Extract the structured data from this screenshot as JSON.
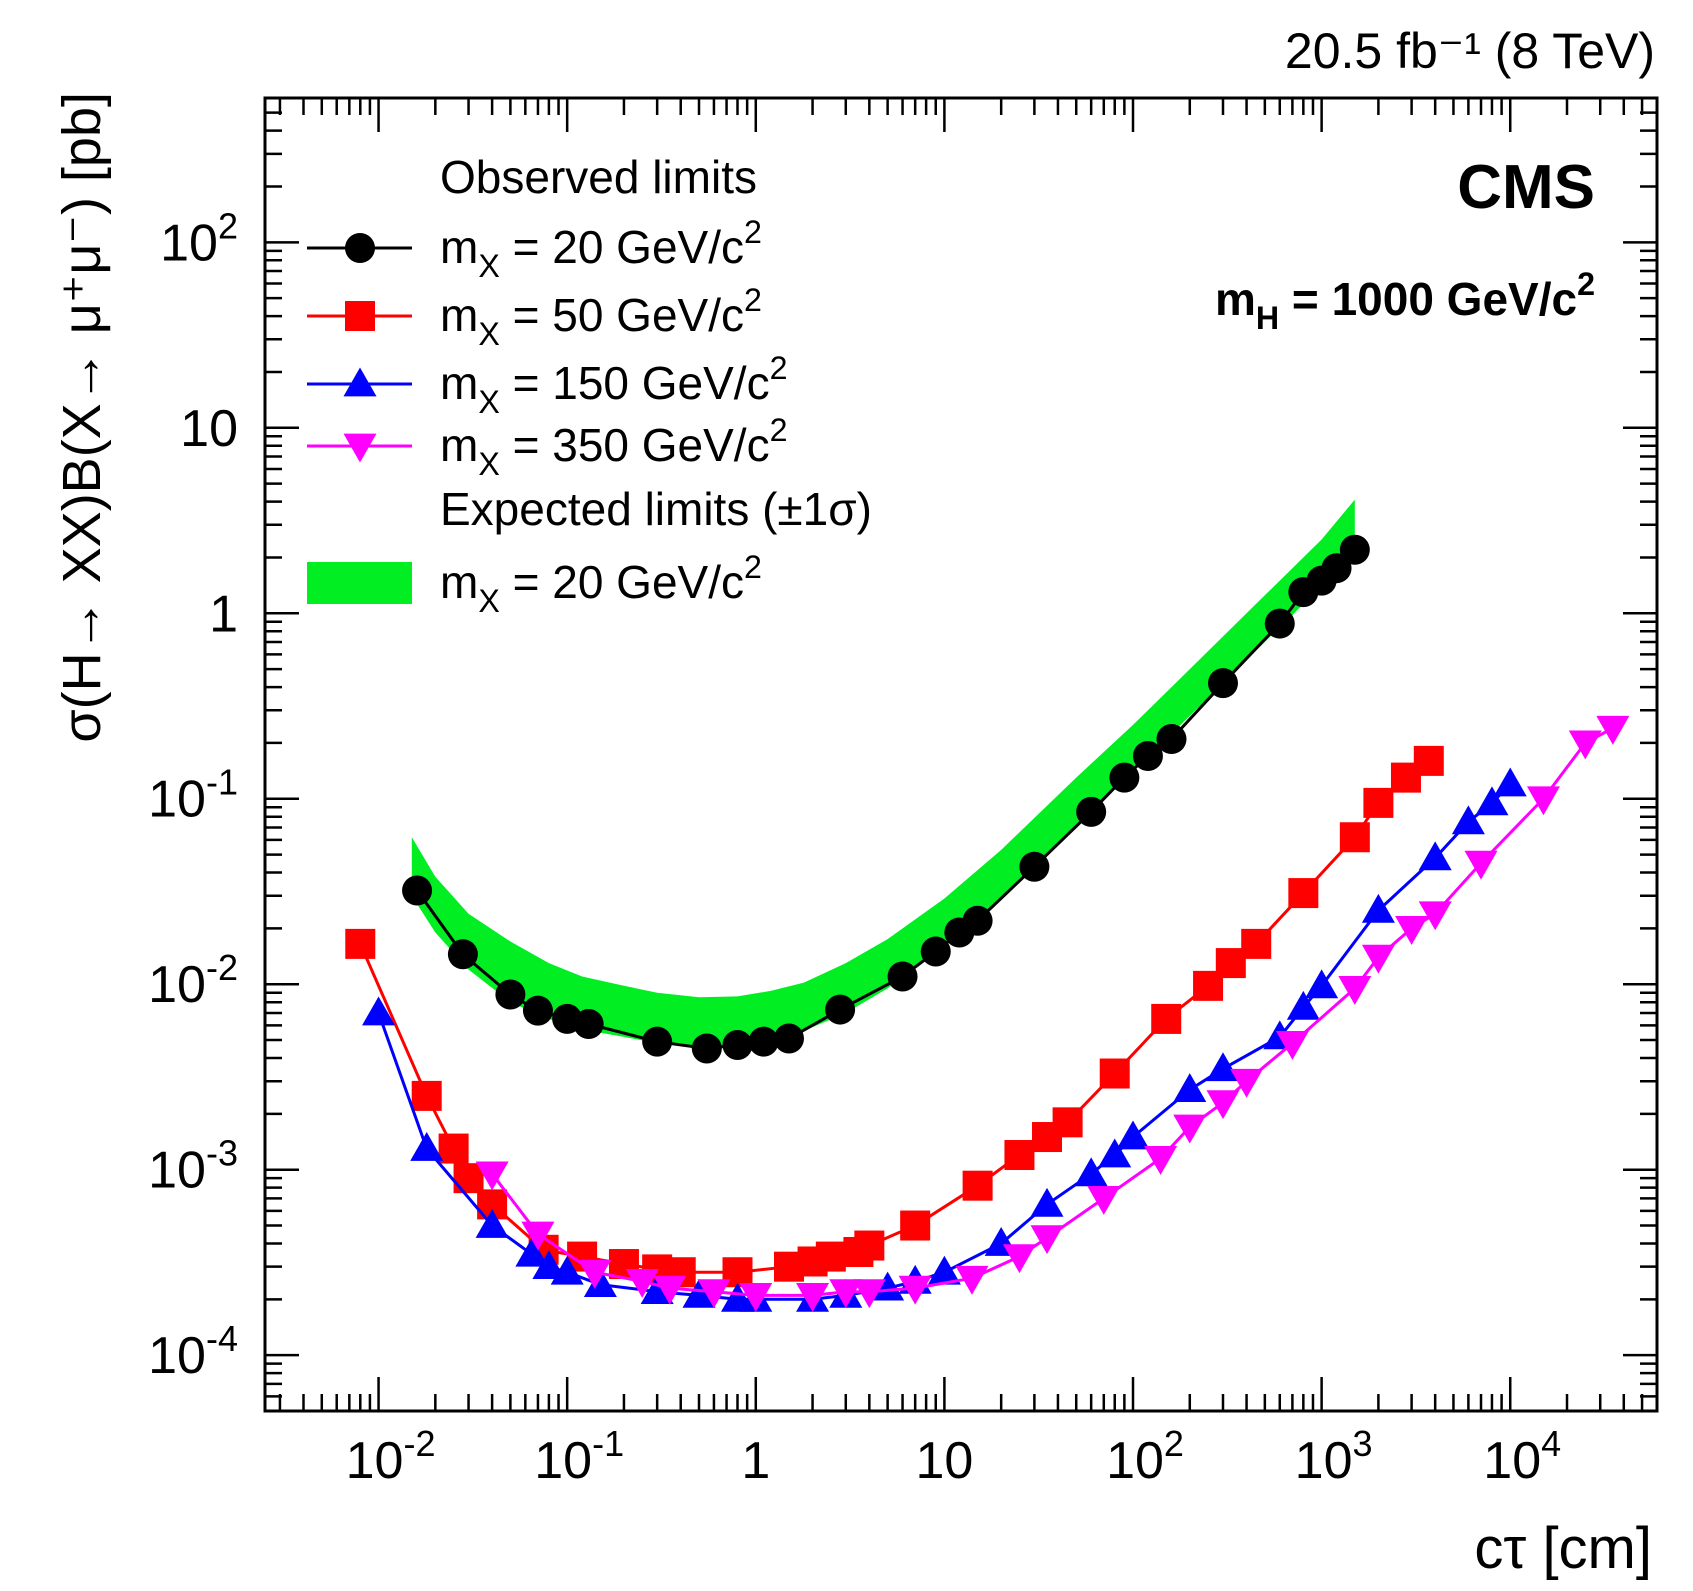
{
  "chart_data": {
    "type": "scatter",
    "x_scale": "log",
    "y_scale": "log",
    "xlim": [
      0.0025,
      60000
    ],
    "ylim": [
      5e-05,
      600
    ],
    "xlabel": "cτ [cm]",
    "ylabel": "σ(H→ XX)B(X→ μ⁺μ⁻) [pb]",
    "lumi_label": "20.5 fb⁻¹ (8 TeV)",
    "experiment_label": "CMS",
    "mass_label": "m_H = 1000 GeV/c²",
    "x_ticks": [
      {
        "value": 0.01,
        "base": "10",
        "exp": "-2"
      },
      {
        "value": 0.1,
        "base": "10",
        "exp": "-1"
      },
      {
        "value": 1,
        "base": "1",
        "exp": ""
      },
      {
        "value": 10,
        "base": "10",
        "exp": ""
      },
      {
        "value": 100,
        "base": "10",
        "exp": "2"
      },
      {
        "value": 1000,
        "base": "10",
        "exp": "3"
      },
      {
        "value": 10000,
        "base": "10",
        "exp": "4"
      }
    ],
    "y_ticks": [
      {
        "value": 0.0001,
        "base": "10",
        "exp": "-4"
      },
      {
        "value": 0.001,
        "base": "10",
        "exp": "-3"
      },
      {
        "value": 0.01,
        "base": "10",
        "exp": "-2"
      },
      {
        "value": 0.1,
        "base": "10",
        "exp": "-1"
      },
      {
        "value": 1,
        "base": "1",
        "exp": ""
      },
      {
        "value": 10,
        "base": "10",
        "exp": ""
      },
      {
        "value": 100,
        "base": "10",
        "exp": "2"
      }
    ],
    "legend": {
      "observed_header": "Observed limits",
      "expected_header": "Expected limits (±1σ)"
    },
    "band": {
      "name": "m_X = 20 GeV/c²",
      "color": "#00ee22",
      "x": [
        0.015,
        0.02,
        0.03,
        0.05,
        0.08,
        0.12,
        0.2,
        0.3,
        0.5,
        0.8,
        1.2,
        1.8,
        3,
        5,
        10,
        20,
        50,
        100,
        200,
        500,
        1000,
        1500
      ],
      "low": [
        0.03,
        0.019,
        0.012,
        0.008,
        0.0065,
        0.0057,
        0.0052,
        0.0048,
        0.0046,
        0.0046,
        0.005,
        0.0056,
        0.007,
        0.0095,
        0.016,
        0.029,
        0.07,
        0.14,
        0.28,
        0.7,
        1.4,
        2.2
      ],
      "high": [
        0.062,
        0.038,
        0.024,
        0.017,
        0.013,
        0.011,
        0.0098,
        0.009,
        0.0085,
        0.0086,
        0.0092,
        0.0102,
        0.013,
        0.0175,
        0.029,
        0.053,
        0.13,
        0.25,
        0.5,
        1.25,
        2.5,
        4.1
      ]
    },
    "series": [
      {
        "name": "m_X = 20 GeV/c²",
        "color": "#000000",
        "marker": "circle",
        "x": [
          0.016,
          0.028,
          0.05,
          0.07,
          0.1,
          0.13,
          0.3,
          0.55,
          0.8,
          1.1,
          1.5,
          2.8,
          6,
          9,
          12,
          15,
          30,
          60,
          90,
          120,
          160,
          300,
          600,
          800,
          1000,
          1200,
          1500
        ],
        "y": [
          0.032,
          0.0145,
          0.0088,
          0.0072,
          0.0065,
          0.0061,
          0.0049,
          0.0045,
          0.0047,
          0.0049,
          0.0051,
          0.0073,
          0.011,
          0.015,
          0.019,
          0.022,
          0.043,
          0.085,
          0.13,
          0.17,
          0.21,
          0.42,
          0.88,
          1.3,
          1.5,
          1.75,
          2.2
        ]
      },
      {
        "name": "m_X = 50 GeV/c²",
        "color": "#ff0000",
        "marker": "square",
        "x": [
          0.008,
          0.018,
          0.025,
          0.03,
          0.04,
          0.075,
          0.12,
          0.2,
          0.3,
          0.4,
          0.8,
          1.5,
          2,
          2.5,
          3.5,
          4,
          7,
          15,
          25,
          35,
          45,
          80,
          150,
          250,
          330,
          450,
          800,
          1500,
          2000,
          2800,
          3700
        ],
        "y": [
          0.0165,
          0.0025,
          0.0013,
          0.0009,
          0.00065,
          0.00037,
          0.00034,
          0.00031,
          0.00029,
          0.00028,
          0.00028,
          0.0003,
          0.00032,
          0.00034,
          0.00036,
          0.00039,
          0.0005,
          0.00082,
          0.0012,
          0.0015,
          0.0018,
          0.0033,
          0.0065,
          0.0098,
          0.013,
          0.0165,
          0.031,
          0.062,
          0.095,
          0.13,
          0.16
        ]
      },
      {
        "name": "m_X = 150 GeV/c²",
        "color": "#0000ff",
        "marker": "triangle-up",
        "x": [
          0.01,
          0.018,
          0.04,
          0.065,
          0.08,
          0.1,
          0.15,
          0.3,
          0.5,
          0.8,
          1,
          2,
          3,
          5,
          7,
          10,
          20,
          35,
          60,
          80,
          100,
          200,
          300,
          600,
          800,
          1000,
          2000,
          4000,
          6000,
          8000,
          10000
        ],
        "y": [
          0.007,
          0.0013,
          0.0005,
          0.00035,
          0.0003,
          0.00028,
          0.00024,
          0.00022,
          0.00021,
          0.0002,
          0.0002,
          0.0002,
          0.00021,
          0.00023,
          0.00025,
          0.00028,
          0.0004,
          0.00065,
          0.00095,
          0.0012,
          0.0015,
          0.0027,
          0.0035,
          0.0052,
          0.0075,
          0.0098,
          0.025,
          0.048,
          0.075,
          0.095,
          0.12
        ]
      },
      {
        "name": "m_X = 350 GeV/c²",
        "color": "#ff00ff",
        "marker": "triangle-down",
        "x": [
          0.04,
          0.07,
          0.14,
          0.25,
          0.35,
          0.6,
          1,
          2,
          3,
          4,
          7,
          14,
          25,
          35,
          70,
          140,
          200,
          300,
          400,
          700,
          1500,
          2000,
          3000,
          4000,
          7000,
          15000,
          25000,
          35000
        ],
        "y": [
          0.00095,
          0.00045,
          0.00028,
          0.00025,
          0.00023,
          0.00022,
          0.00021,
          0.00021,
          0.00022,
          0.00022,
          0.00023,
          0.00026,
          0.00034,
          0.00043,
          0.0007,
          0.00115,
          0.0017,
          0.0023,
          0.003,
          0.0048,
          0.0095,
          0.014,
          0.02,
          0.024,
          0.045,
          0.1,
          0.2,
          0.24
        ]
      }
    ]
  }
}
